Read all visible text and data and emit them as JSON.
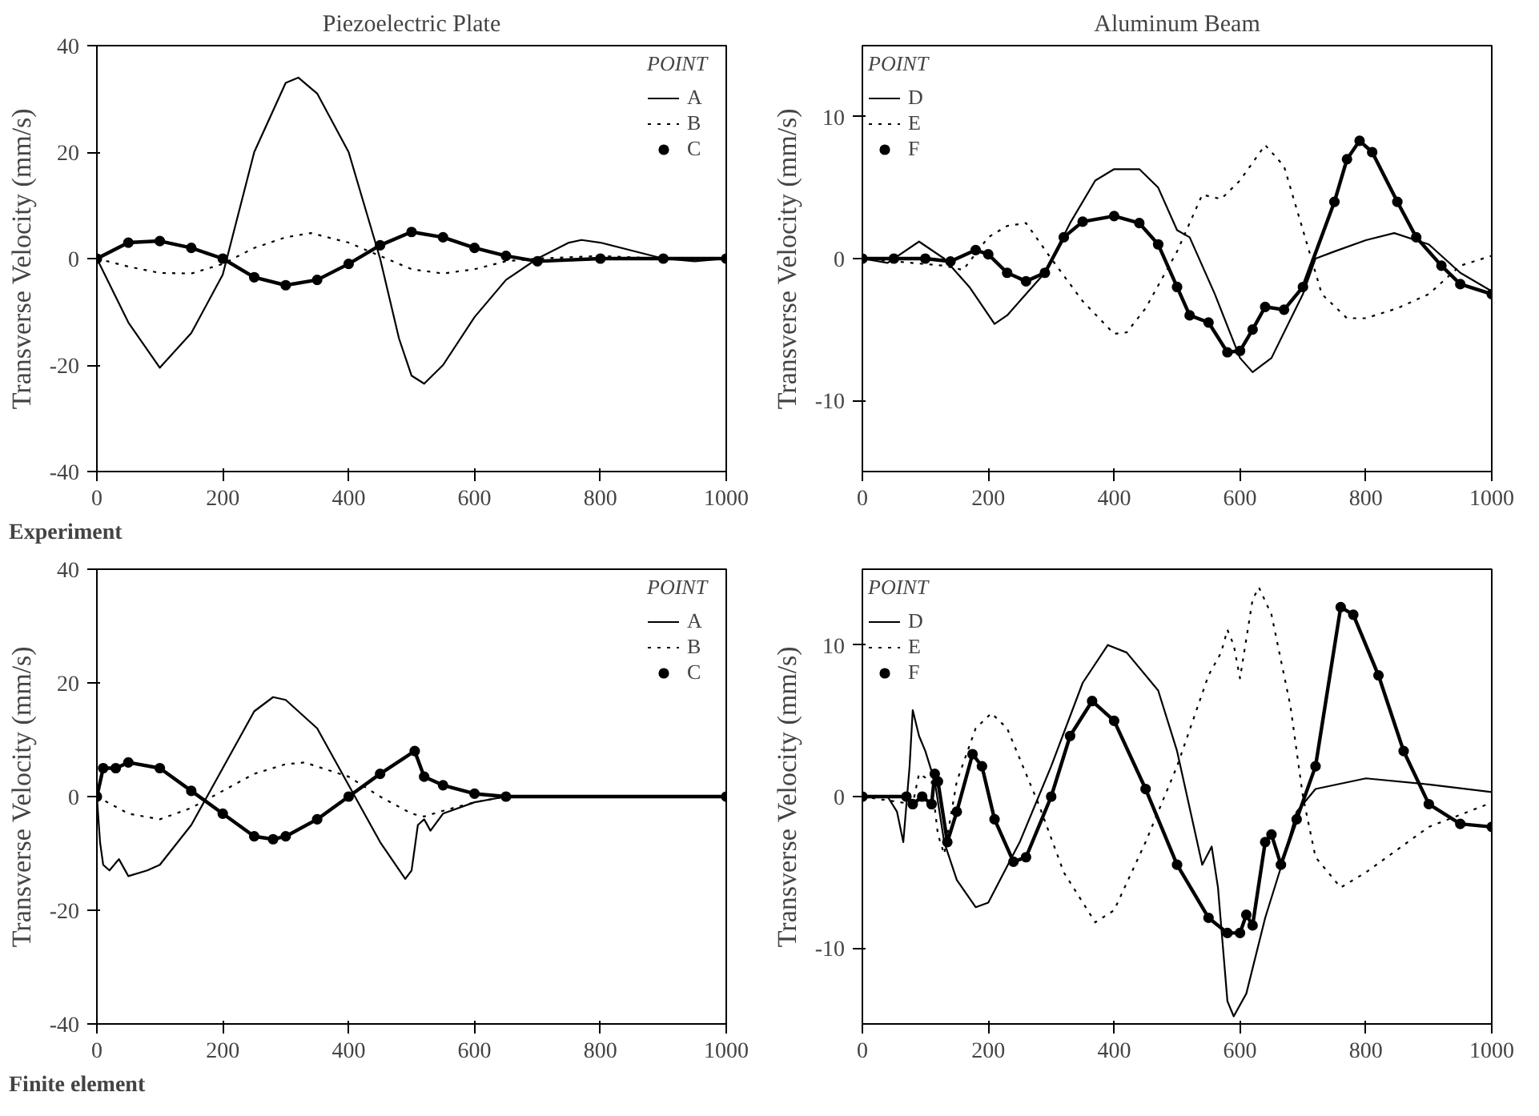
{
  "chart_data": [
    {
      "type": "line",
      "title": "Piezoelectric Plate",
      "ylabel": "Transverse Velocity (mm/s)",
      "annotations": [
        "Experiment"
      ],
      "xlim": [
        0,
        1000
      ],
      "xticks": [
        0,
        200,
        400,
        600,
        800,
        1000
      ],
      "ylim": [
        -40,
        40
      ],
      "yticks": [
        -40,
        -20,
        0,
        20,
        40
      ],
      "legend": "top right",
      "legend_title": "POINT",
      "series": [
        {
          "name": "A",
          "color": "#000000",
          "line_style": "solid",
          "marker": "none",
          "x": [
            0,
            50,
            100,
            150,
            200,
            250,
            300,
            320,
            350,
            400,
            430,
            450,
            480,
            500,
            520,
            550,
            600,
            650,
            700,
            750,
            770,
            800,
            850,
            900,
            950,
            1000
          ],
          "values": [
            0,
            -12,
            -20.5,
            -14,
            -3,
            20,
            33,
            34,
            31,
            20,
            8,
            0,
            -15,
            -22,
            -23.5,
            -20,
            -11,
            -4,
            0,
            3,
            3.5,
            3,
            1.5,
            0,
            -0.5,
            0
          ]
        },
        {
          "name": "B",
          "color": "#000000",
          "line_style": "dotted",
          "marker": "none",
          "x": [
            0,
            50,
            100,
            150,
            200,
            250,
            300,
            340,
            400,
            450,
            500,
            550,
            600,
            650,
            700,
            800,
            900,
            1000
          ],
          "values": [
            0,
            -1.5,
            -2.7,
            -2.8,
            -1,
            2,
            4,
            4.8,
            3,
            0.5,
            -2,
            -2.8,
            -2,
            -0.5,
            0,
            0.5,
            0,
            0
          ]
        },
        {
          "name": "C",
          "color": "#000000",
          "line_style": "solid",
          "marker": "circle",
          "x": [
            0,
            50,
            100,
            150,
            200,
            250,
            300,
            350,
            400,
            450,
            500,
            550,
            600,
            650,
            700,
            800,
            900,
            1000
          ],
          "values": [
            0,
            3,
            3.3,
            2,
            0,
            -3.5,
            -5,
            -4,
            -1,
            2.5,
            5,
            4,
            2,
            0.5,
            -0.5,
            0,
            0,
            0
          ]
        }
      ]
    },
    {
      "type": "line",
      "title": "Aluminum Beam",
      "ylabel": "Transverse Velocity (mm/s)",
      "xlim": [
        0,
        1000
      ],
      "xticks": [
        0,
        200,
        400,
        600,
        800,
        1000
      ],
      "ylim": [
        -15,
        15
      ],
      "yticks": [
        -10,
        0,
        10
      ],
      "legend": "top left",
      "legend_title": "POINT",
      "series": [
        {
          "name": "D",
          "color": "#000000",
          "line_style": "solid",
          "marker": "none",
          "x": [
            0,
            40,
            90,
            130,
            170,
            210,
            230,
            260,
            290,
            330,
            370,
            400,
            440,
            470,
            500,
            520,
            560,
            600,
            620,
            650,
            700,
            720,
            750,
            800,
            845,
            900,
            950,
            1000
          ],
          "values": [
            0,
            -0.3,
            1.2,
            0,
            -2,
            -4.6,
            -4,
            -2.5,
            -1,
            2.5,
            5.5,
            6.3,
            6.3,
            5,
            2,
            1.5,
            -2.5,
            -7,
            -8,
            -7,
            -2.5,
            0,
            0.5,
            1.3,
            1.8,
            1,
            -1,
            -2.3
          ]
        },
        {
          "name": "E",
          "color": "#000000",
          "line_style": "dotted",
          "marker": "none",
          "x": [
            0,
            130,
            160,
            200,
            230,
            260,
            300,
            350,
            400,
            420,
            450,
            500,
            540,
            570,
            600,
            640,
            670,
            700,
            730,
            770,
            800,
            850,
            900,
            950,
            1000
          ],
          "values": [
            0,
            -0.5,
            -0.8,
            1.5,
            2.3,
            2.5,
            0,
            -3,
            -5.3,
            -5.2,
            -3.5,
            0.5,
            4.5,
            4.2,
            5.5,
            8,
            6.5,
            2,
            -2.5,
            -4.2,
            -4.2,
            -3.5,
            -2.5,
            -0.5,
            0.2
          ]
        },
        {
          "name": "F",
          "color": "#000000",
          "line_style": "solid",
          "marker": "circle",
          "x": [
            0,
            50,
            100,
            140,
            180,
            200,
            230,
            260,
            290,
            320,
            350,
            400,
            440,
            470,
            500,
            520,
            550,
            580,
            600,
            620,
            640,
            670,
            700,
            750,
            770,
            790,
            810,
            850,
            880,
            920,
            950,
            1000
          ],
          "values": [
            0,
            0,
            0,
            -0.2,
            0.6,
            0.3,
            -1,
            -1.6,
            -1,
            1.5,
            2.6,
            3,
            2.5,
            1,
            -2,
            -4,
            -4.5,
            -6.6,
            -6.5,
            -5,
            -3.4,
            -3.6,
            -2,
            4,
            7,
            8.3,
            7.5,
            4,
            1.5,
            -0.5,
            -1.8,
            -2.5
          ]
        }
      ]
    },
    {
      "type": "line",
      "ylabel": "Transverse Velocity (mm/s)",
      "annotations": [
        "Finite element"
      ],
      "xlim": [
        0,
        1000
      ],
      "xticks": [
        0,
        200,
        400,
        600,
        800,
        1000
      ],
      "ylim": [
        -40,
        40
      ],
      "yticks": [
        -40,
        -20,
        0,
        20,
        40
      ],
      "legend": "top right",
      "legend_title": "POINT",
      "series": [
        {
          "name": "A",
          "color": "#000000",
          "line_style": "solid",
          "marker": "none",
          "x": [
            0,
            5,
            10,
            20,
            35,
            50,
            80,
            100,
            150,
            200,
            250,
            280,
            300,
            350,
            400,
            450,
            490,
            500,
            510,
            520,
            530,
            550,
            600,
            650,
            1000
          ],
          "values": [
            0,
            -8,
            -12,
            -13,
            -11,
            -14,
            -13,
            -12,
            -5,
            5,
            15,
            17.5,
            17,
            12,
            2,
            -8,
            -14.5,
            -13,
            -5,
            -4,
            -6,
            -3,
            -1,
            0,
            0
          ]
        },
        {
          "name": "B",
          "color": "#000000",
          "line_style": "dotted",
          "marker": "none",
          "x": [
            0,
            50,
            100,
            150,
            200,
            250,
            300,
            330,
            400,
            450,
            500,
            520,
            550,
            600,
            650,
            1000
          ],
          "values": [
            0,
            -3,
            -4,
            -2,
            1,
            4,
            5.7,
            6,
            3.5,
            0,
            -3,
            -3.5,
            -2.5,
            -1,
            0,
            0
          ]
        },
        {
          "name": "C",
          "color": "#000000",
          "line_style": "solid",
          "marker": "circle",
          "x": [
            0,
            10,
            30,
            50,
            100,
            150,
            200,
            250,
            280,
            300,
            350,
            400,
            450,
            505,
            520,
            550,
            600,
            650,
            1000
          ],
          "values": [
            0,
            5,
            5,
            6,
            5,
            1,
            -3,
            -7,
            -7.5,
            -7,
            -4,
            0,
            4,
            8,
            3.5,
            2,
            0.5,
            0,
            0
          ]
        }
      ]
    },
    {
      "type": "line",
      "ylabel": "Transverse Velocity (mm/s)",
      "xlim": [
        0,
        1000
      ],
      "xticks": [
        0,
        200,
        400,
        600,
        800,
        1000
      ],
      "ylim": [
        -15,
        15
      ],
      "yticks": [
        -10,
        0,
        10
      ],
      "legend": "top left",
      "legend_title": "POINT",
      "series": [
        {
          "name": "D",
          "color": "#000000",
          "line_style": "solid",
          "marker": "none",
          "x": [
            0,
            40,
            55,
            65,
            75,
            80,
            90,
            100,
            115,
            130,
            150,
            180,
            200,
            250,
            300,
            350,
            390,
            420,
            470,
            500,
            540,
            555,
            565,
            580,
            590,
            610,
            640,
            670,
            690,
            720,
            800,
            900,
            1000
          ],
          "values": [
            0,
            0,
            -1,
            -3,
            2,
            5.7,
            4,
            3,
            1,
            -3,
            -5.5,
            -7.3,
            -7,
            -3,
            2,
            7.5,
            10,
            9.5,
            7,
            3,
            -4.5,
            -3.3,
            -6,
            -13.5,
            -14.5,
            -13,
            -8,
            -4,
            -1,
            0.5,
            1.2,
            0.8,
            0.3
          ]
        },
        {
          "name": "E",
          "color": "#000000",
          "line_style": "dotted",
          "marker": "none",
          "x": [
            0,
            80,
            90,
            110,
            120,
            130,
            150,
            180,
            205,
            230,
            280,
            320,
            370,
            400,
            450,
            500,
            550,
            570,
            580,
            590,
            600,
            620,
            630,
            650,
            680,
            700,
            720,
            760,
            800,
            850,
            900,
            1000
          ],
          "values": [
            0,
            -0.5,
            1.5,
            1,
            -2.5,
            -3.8,
            1,
            4.5,
            5.5,
            4.5,
            -0.5,
            -5,
            -8.3,
            -7.5,
            -3,
            2,
            8,
            9.5,
            11,
            10,
            7.8,
            13,
            13.8,
            12,
            6,
            0,
            -4,
            -6,
            -5,
            -3.5,
            -2,
            -0.4
          ]
        },
        {
          "name": "F",
          "color": "#000000",
          "line_style": "solid",
          "marker": "circle",
          "x": [
            0,
            70,
            80,
            95,
            110,
            115,
            120,
            135,
            150,
            175,
            190,
            210,
            240,
            260,
            300,
            330,
            365,
            400,
            450,
            500,
            550,
            580,
            600,
            610,
            620,
            640,
            650,
            665,
            690,
            720,
            760,
            780,
            820,
            860,
            900,
            950,
            1000
          ],
          "values": [
            0,
            0,
            -0.5,
            0,
            -0.5,
            1.5,
            1,
            -3,
            -1,
            2.8,
            2,
            -1.5,
            -4.3,
            -4,
            0,
            4,
            6.3,
            5,
            0.5,
            -4.5,
            -8,
            -9,
            -9,
            -7.8,
            -8.5,
            -3,
            -2.5,
            -4.5,
            -1.5,
            2,
            12.5,
            12,
            8,
            3,
            -0.5,
            -1.8,
            -2
          ]
        }
      ]
    }
  ]
}
